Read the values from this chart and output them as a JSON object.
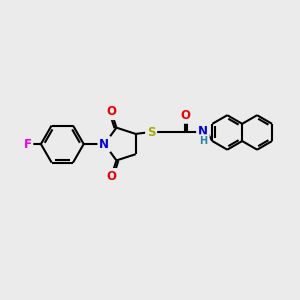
{
  "bg_color": "#ebebeb",
  "bond_color": "#000000",
  "bond_width": 1.5,
  "dbo": 0.07,
  "atom_colors": {
    "F": "#ee00ee",
    "N": "#0000ee",
    "O": "#ee0000",
    "S": "#aaaa00",
    "H": "#2288aa",
    "C": "#000000"
  },
  "font_size": 8.5,
  "figsize": [
    3.0,
    3.0
  ],
  "dpi": 100
}
